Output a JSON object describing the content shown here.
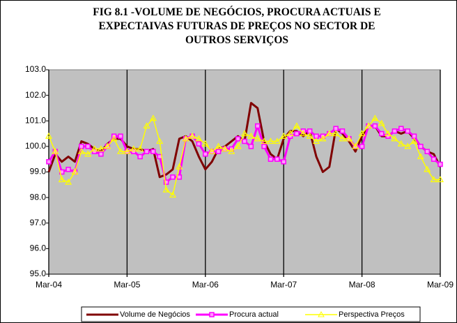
{
  "chart_data": {
    "type": "line",
    "title": "FIG 8.1 -VOLUME DE NEGÓCIOS, PROCURA ACTUAIS E EXPECTAIVAS FUTURAS DE PREÇOS NO SECTOR DE OUTROS SERVIÇOS",
    "categories": [
      "Mar-04",
      null,
      null,
      null,
      null,
      null,
      null,
      null,
      null,
      null,
      null,
      null,
      "Mar-05",
      null,
      null,
      null,
      null,
      null,
      null,
      null,
      null,
      null,
      null,
      null,
      "Mar-06",
      null,
      null,
      null,
      null,
      null,
      null,
      null,
      null,
      null,
      null,
      null,
      "Mar-07",
      null,
      null,
      null,
      null,
      null,
      null,
      null,
      null,
      null,
      null,
      null,
      "Mar-08",
      null,
      null,
      null,
      null,
      null,
      null,
      null,
      null,
      null,
      null,
      null,
      "Mar-09"
    ],
    "series": [
      {
        "name": "Volume de Negócios",
        "color": "#800000",
        "marker": "none",
        "values": [
          99.0,
          99.7,
          99.4,
          99.6,
          99.4,
          100.2,
          100.1,
          99.9,
          99.8,
          100.1,
          100.3,
          100.3,
          100.0,
          99.9,
          99.9,
          99.8,
          99.9,
          98.8,
          98.9,
          99.1,
          100.3,
          100.4,
          100.2,
          99.6,
          99.1,
          99.4,
          99.9,
          100.0,
          100.2,
          100.4,
          100.2,
          101.7,
          101.5,
          100.2,
          99.7,
          99.5,
          100.3,
          100.6,
          100.6,
          100.4,
          100.6,
          99.6,
          99.0,
          99.2,
          100.7,
          100.5,
          100.2,
          99.8,
          100.4,
          100.8,
          100.8,
          100.4,
          100.4,
          100.6,
          100.5,
          100.6,
          100.3,
          100.0,
          99.8,
          99.7,
          99.2
        ]
      },
      {
        "name": "Procura actual",
        "color": "#ff00ff",
        "marker": "square",
        "values": [
          99.4,
          99.8,
          99.0,
          99.1,
          99.0,
          100.0,
          100.0,
          99.8,
          99.7,
          100.0,
          100.4,
          100.4,
          99.8,
          99.8,
          99.6,
          99.8,
          99.8,
          99.6,
          98.6,
          98.8,
          98.8,
          100.3,
          100.4,
          100.1,
          99.7,
          99.8,
          99.8,
          99.9,
          99.9,
          100.3,
          100.2,
          100.0,
          100.8,
          100.0,
          99.5,
          99.5,
          99.4,
          100.4,
          100.5,
          100.6,
          100.6,
          100.4,
          100.4,
          100.5,
          100.7,
          100.6,
          100.3,
          100.0,
          100.0,
          100.8,
          100.8,
          100.5,
          100.4,
          100.6,
          100.7,
          100.6,
          100.4,
          100.0,
          99.8,
          99.5,
          99.3
        ]
      },
      {
        "name": "Perspectiva Preços",
        "color": "#ffff00",
        "marker": "triangle",
        "values": [
          100.4,
          99.8,
          98.7,
          98.6,
          99.0,
          99.8,
          99.7,
          99.9,
          99.9,
          100.0,
          100.3,
          99.8,
          99.8,
          99.9,
          99.9,
          100.8,
          101.1,
          100.2,
          98.3,
          98.1,
          99.2,
          100.3,
          100.4,
          100.3,
          100.1,
          99.8,
          100.0,
          99.9,
          99.8,
          100.0,
          100.5,
          100.4,
          100.3,
          100.2,
          100.2,
          100.2,
          100.4,
          100.5,
          100.8,
          100.5,
          100.4,
          100.2,
          100.3,
          100.5,
          100.5,
          100.3,
          100.3,
          100.0,
          100.5,
          100.8,
          101.1,
          100.9,
          100.5,
          100.3,
          100.1,
          100.0,
          100.2,
          99.6,
          99.1,
          98.7,
          98.7
        ]
      }
    ],
    "ylim": [
      95,
      103
    ],
    "yticks": [
      {
        "value": 95,
        "label": "95.0"
      },
      {
        "value": 96,
        "label": "96.0"
      },
      {
        "value": 97,
        "label": "97.0"
      },
      {
        "value": 98,
        "label": "98.0"
      },
      {
        "value": 99,
        "label": "99.0"
      },
      {
        "value": 100,
        "label": "100.0"
      },
      {
        "value": 101,
        "label": "101.0"
      },
      {
        "value": 102,
        "label": "102.0"
      },
      {
        "value": 103,
        "label": "103.0"
      }
    ],
    "plot_background": "#c0c0c0",
    "legend": "bottom"
  }
}
